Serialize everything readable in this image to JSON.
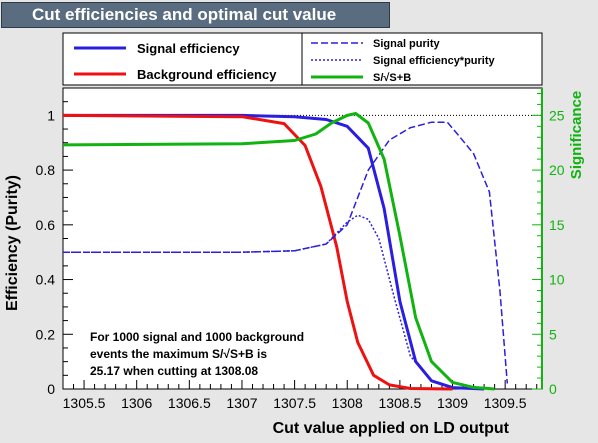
{
  "window": {
    "title": "Cut efficiencies and optimal cut value"
  },
  "legend": {
    "left": [
      {
        "label": "Signal efficiency",
        "color": "#2a1ee0",
        "style": "solid"
      },
      {
        "label": "Background efficiency",
        "color": "#ee1111",
        "style": "solid"
      }
    ],
    "right": [
      {
        "label": "Signal purity",
        "color": "#2a1ee0",
        "style": "dashed"
      },
      {
        "label": "Signal efficiency*purity",
        "color": "#2a1ee0",
        "style": "dotted"
      },
      {
        "label": "S/√S+B",
        "color": "#11b311",
        "style": "solid"
      }
    ]
  },
  "annotation": {
    "line1": "For 1000 signal and 1000 background",
    "line2": "events the maximum S/√S+B is",
    "line3": "25.17 when cutting at 1308.08"
  },
  "chart_data": {
    "type": "line",
    "title": "Cut efficiencies and optimal cut value",
    "xlabel": "Cut value applied on LD output",
    "ylabel": "Efficiency (Purity)",
    "y2label": "Significance",
    "xlim": [
      1305.3,
      1309.85
    ],
    "ylim": [
      0,
      1.1
    ],
    "y2lim": [
      0,
      27.5
    ],
    "xticks": [
      1305.5,
      1306,
      1306.5,
      1307,
      1307.5,
      1308,
      1308.5,
      1309,
      1309.5
    ],
    "xtick_labels": [
      "1305.5",
      "1306",
      "1306.5",
      "1307",
      "1307.5",
      "1308",
      "1308.5",
      "1309",
      "1309.5"
    ],
    "yticks": [
      0,
      0.2,
      0.4,
      0.6,
      0.8,
      1
    ],
    "ytick_labels": [
      "0",
      "0.2",
      "0.4",
      "0.6",
      "0.8",
      "1"
    ],
    "y2ticks": [
      0,
      5,
      10,
      15,
      20,
      25
    ],
    "y2tick_labels": [
      "0",
      "5",
      "10",
      "15",
      "20",
      "25"
    ],
    "series": [
      {
        "name": "Signal efficiency",
        "color": "#2a1ee0",
        "style": "solid",
        "axis": "left",
        "x": [
          1305.3,
          1307.0,
          1307.5,
          1307.8,
          1308.0,
          1308.2,
          1308.35,
          1308.5,
          1308.65,
          1308.8,
          1309.0,
          1309.3
        ],
        "y": [
          1.0,
          1.0,
          0.995,
          0.985,
          0.96,
          0.88,
          0.66,
          0.32,
          0.1,
          0.03,
          0.005,
          0.0
        ]
      },
      {
        "name": "Background efficiency",
        "color": "#ee1111",
        "style": "solid",
        "axis": "left",
        "x": [
          1305.3,
          1307.0,
          1307.4,
          1307.6,
          1307.75,
          1307.9,
          1308.0,
          1308.1,
          1308.25,
          1308.4,
          1308.6,
          1309.0
        ],
        "y": [
          1.0,
          0.995,
          0.97,
          0.89,
          0.74,
          0.52,
          0.32,
          0.17,
          0.05,
          0.015,
          0.002,
          0.0
        ]
      },
      {
        "name": "Signal purity",
        "color": "#2a1ee0",
        "style": "dashed",
        "axis": "left",
        "x": [
          1305.3,
          1307.0,
          1307.5,
          1307.8,
          1308.0,
          1308.2,
          1308.4,
          1308.6,
          1308.8,
          1308.95,
          1309.05,
          1309.2,
          1309.35,
          1309.45,
          1309.52
        ],
        "y": [
          0.5,
          0.5,
          0.505,
          0.53,
          0.6,
          0.8,
          0.91,
          0.955,
          0.975,
          0.975,
          0.93,
          0.86,
          0.72,
          0.36,
          0.02
        ]
      },
      {
        "name": "Signal efficiency*purity",
        "color": "#2a1ee0",
        "style": "dotted",
        "axis": "left",
        "x": [
          1305.3,
          1307.0,
          1307.5,
          1307.8,
          1308.0,
          1308.1,
          1308.2,
          1308.3,
          1308.45,
          1308.6,
          1308.8,
          1309.0
        ],
        "y": [
          0.5,
          0.5,
          0.505,
          0.53,
          0.61,
          0.635,
          0.62,
          0.55,
          0.33,
          0.12,
          0.03,
          0.005
        ]
      },
      {
        "name": "S/√S+B",
        "color": "#11b311",
        "style": "solid",
        "axis": "right",
        "x": [
          1305.3,
          1307.0,
          1307.5,
          1307.7,
          1307.85,
          1308.0,
          1308.08,
          1308.2,
          1308.35,
          1308.5,
          1308.65,
          1308.8,
          1309.0,
          1309.2,
          1309.4
        ],
        "y": [
          22.3,
          22.4,
          22.7,
          23.3,
          24.3,
          25.0,
          25.17,
          24.3,
          21.0,
          14.0,
          6.5,
          2.5,
          0.6,
          0.15,
          0.0
        ]
      }
    ],
    "reference_line": {
      "y": 1.0
    },
    "grid": false
  }
}
